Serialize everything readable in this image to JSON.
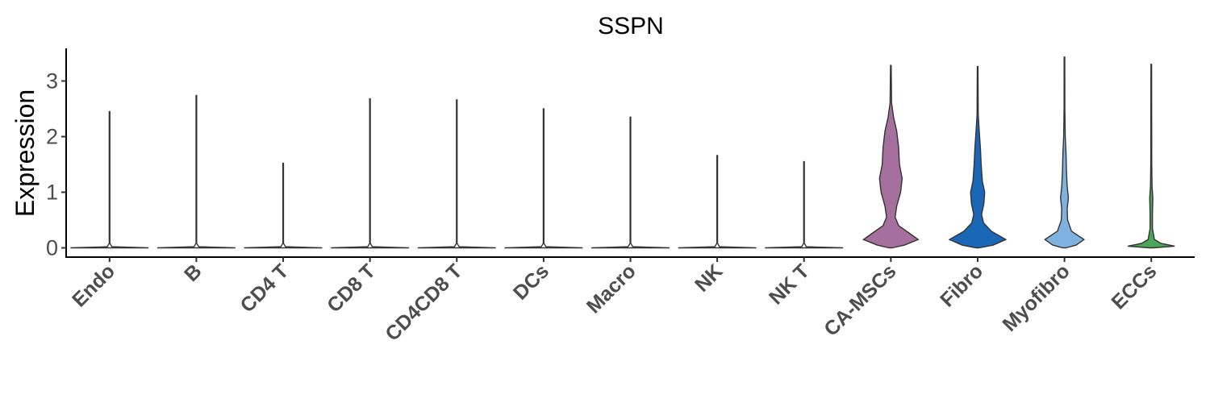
{
  "chart_data": {
    "type": "violin",
    "title": "SSPN",
    "xlabel": "",
    "ylabel": "Expression",
    "ylim": [
      -0.15,
      3.55
    ],
    "yticks": [
      "0",
      "1",
      "2",
      "3"
    ],
    "grid": false,
    "legend": "none",
    "categories": [
      "Endo",
      "B",
      "CD4 T",
      "CD8 T",
      "CD4CD8 T",
      "DCs",
      "Macro",
      "NK",
      "NK T",
      "CA-MSCs",
      "Fibro",
      "Myofibro",
      "ECCs"
    ],
    "fill_colors": [
      "#ffffff",
      "#ffffff",
      "#ffffff",
      "#ffffff",
      "#ffffff",
      "#ffffff",
      "#ffffff",
      "#ffffff",
      "#ffffff",
      "#a5709e",
      "#1a67b5",
      "#7fb2e0",
      "#4aa556"
    ],
    "max_expression": [
      2.45,
      2.74,
      1.52,
      2.68,
      2.66,
      2.5,
      2.35,
      1.66,
      1.55,
      3.28,
      3.26,
      3.43,
      3.3
    ],
    "density_profiles": [
      [
        [
          0,
          1
        ],
        [
          0.02,
          0.06
        ],
        [
          0.08,
          0.004
        ],
        [
          2.45,
          0.004
        ]
      ],
      [
        [
          0,
          1
        ],
        [
          0.02,
          0.06
        ],
        [
          0.08,
          0.004
        ],
        [
          2.74,
          0.004
        ]
      ],
      [
        [
          0,
          1
        ],
        [
          0.02,
          0.06
        ],
        [
          0.08,
          0.004
        ],
        [
          1.52,
          0.004
        ]
      ],
      [
        [
          0,
          1
        ],
        [
          0.02,
          0.06
        ],
        [
          0.08,
          0.004
        ],
        [
          2.68,
          0.004
        ]
      ],
      [
        [
          0,
          1
        ],
        [
          0.02,
          0.06
        ],
        [
          0.08,
          0.004
        ],
        [
          2.66,
          0.004
        ]
      ],
      [
        [
          0,
          1
        ],
        [
          0.02,
          0.06
        ],
        [
          0.08,
          0.004
        ],
        [
          2.5,
          0.004
        ]
      ],
      [
        [
          0,
          1
        ],
        [
          0.02,
          0.06
        ],
        [
          0.08,
          0.004
        ],
        [
          2.35,
          0.004
        ]
      ],
      [
        [
          0,
          1
        ],
        [
          0.02,
          0.06
        ],
        [
          0.08,
          0.004
        ],
        [
          1.66,
          0.004
        ]
      ],
      [
        [
          0,
          1
        ],
        [
          0.02,
          0.06
        ],
        [
          0.08,
          0.004
        ],
        [
          1.55,
          0.004
        ]
      ],
      [
        [
          0,
          0.04
        ],
        [
          0.05,
          0.35
        ],
        [
          0.15,
          0.7
        ],
        [
          0.25,
          0.5
        ],
        [
          0.4,
          0.2
        ],
        [
          0.55,
          0.11
        ],
        [
          0.75,
          0.15
        ],
        [
          1.0,
          0.25
        ],
        [
          1.25,
          0.29
        ],
        [
          1.5,
          0.22
        ],
        [
          1.8,
          0.2
        ],
        [
          2.1,
          0.15
        ],
        [
          2.35,
          0.07
        ],
        [
          2.6,
          0.02
        ],
        [
          3.28,
          0.004
        ]
      ],
      [
        [
          0,
          0.04
        ],
        [
          0.05,
          0.4
        ],
        [
          0.15,
          0.72
        ],
        [
          0.3,
          0.35
        ],
        [
          0.45,
          0.15
        ],
        [
          0.6,
          0.1
        ],
        [
          0.8,
          0.16
        ],
        [
          1.0,
          0.18
        ],
        [
          1.2,
          0.12
        ],
        [
          1.5,
          0.09
        ],
        [
          1.8,
          0.07
        ],
        [
          2.1,
          0.04
        ],
        [
          2.4,
          0.015
        ],
        [
          3.26,
          0.004
        ]
      ],
      [
        [
          0,
          0.04
        ],
        [
          0.05,
          0.3
        ],
        [
          0.15,
          0.5
        ],
        [
          0.3,
          0.18
        ],
        [
          0.5,
          0.08
        ],
        [
          0.7,
          0.07
        ],
        [
          0.9,
          0.1
        ],
        [
          1.1,
          0.07
        ],
        [
          1.4,
          0.05
        ],
        [
          1.7,
          0.04
        ],
        [
          2.0,
          0.02
        ],
        [
          2.5,
          0.01
        ],
        [
          3.43,
          0.004
        ]
      ],
      [
        [
          0,
          0.04
        ],
        [
          0.03,
          0.6
        ],
        [
          0.08,
          0.25
        ],
        [
          0.15,
          0.08
        ],
        [
          0.35,
          0.03
        ],
        [
          0.6,
          0.03
        ],
        [
          0.9,
          0.04
        ],
        [
          1.1,
          0.02
        ],
        [
          1.5,
          0.012
        ],
        [
          3.3,
          0.004
        ]
      ]
    ]
  }
}
